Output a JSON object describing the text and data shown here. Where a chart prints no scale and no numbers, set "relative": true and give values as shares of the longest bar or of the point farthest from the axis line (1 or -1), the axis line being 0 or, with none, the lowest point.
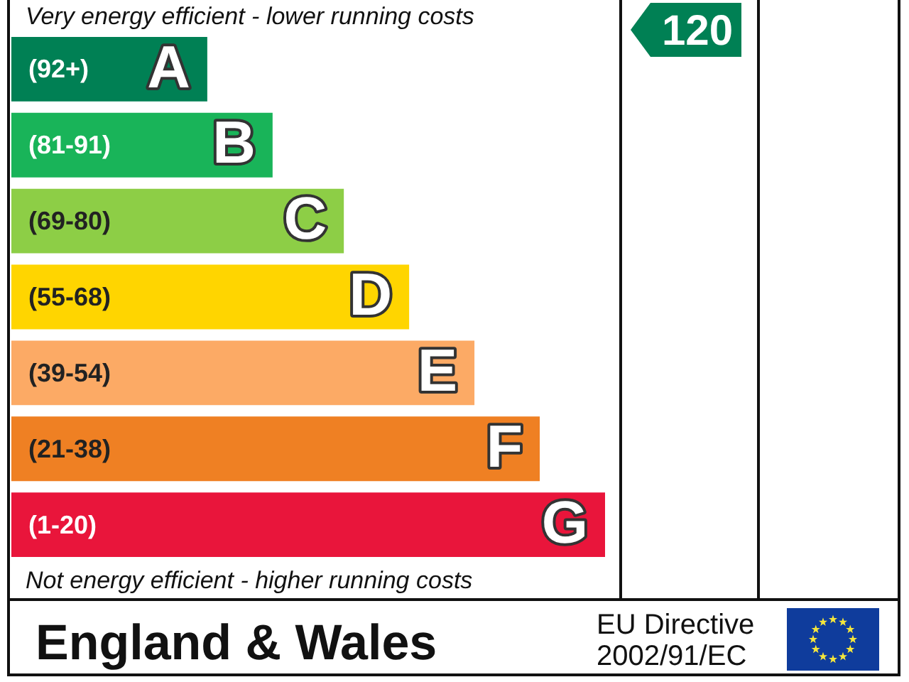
{
  "chart_data": {
    "type": "bar",
    "orientation": "horizontal",
    "relative": true,
    "categories": [
      "A",
      "B",
      "C",
      "D",
      "E",
      "F",
      "G"
    ],
    "values": [
      0.33,
      0.44,
      0.56,
      0.67,
      0.78,
      0.89,
      1
    ],
    "colors": [
      "#008054",
      "#19b459",
      "#8dce46",
      "#ffd500",
      "#fcaa65",
      "#ef8023",
      "#e9153b"
    ],
    "title": "England & Wales",
    "annotations": [
      "Very energy efficient - lower running costs",
      "(92+)",
      "(81-91)",
      "(69-80)",
      "(55-68)",
      "(39-54)",
      "(21-38)",
      "(1-20)",
      "Not energy efficient - higher running costs",
      "120",
      "EU Directive 2002/91/EC"
    ]
  }
}
